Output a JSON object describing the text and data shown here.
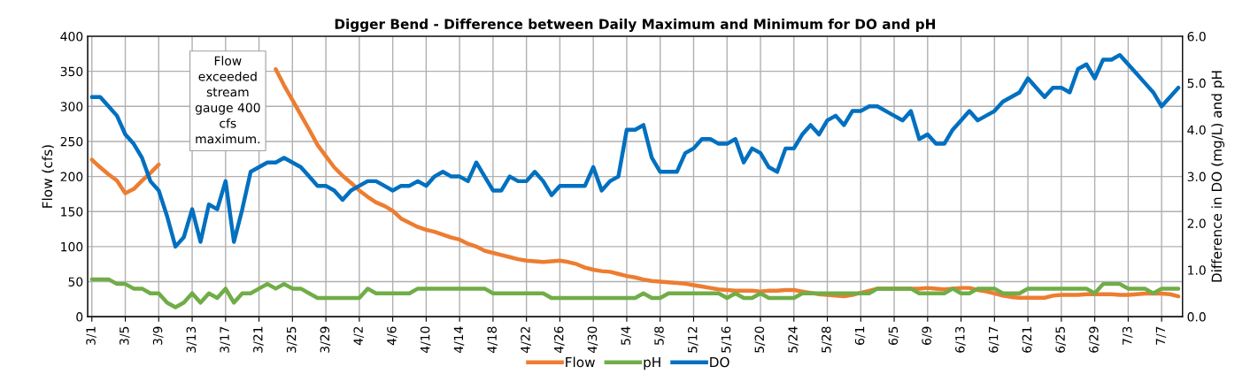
{
  "chart_data": {
    "type": "line",
    "title": "Digger Bend - Difference between Daily Maximum and Minimum for DO and pH",
    "ylabel": "Flow (cfs)",
    "y2label": "Difference in DO (mg/L) and pH",
    "categories": [
      "3/1",
      null,
      null,
      null,
      "3/5",
      null,
      null,
      null,
      "3/9",
      null,
      null,
      null,
      "3/13",
      null,
      null,
      null,
      "3/17",
      null,
      null,
      null,
      "3/21",
      null,
      null,
      null,
      "3/25",
      null,
      null,
      null,
      "3/29",
      null,
      null,
      null,
      "4/2",
      null,
      null,
      null,
      "4/6",
      null,
      null,
      null,
      "4/10",
      null,
      null,
      null,
      "4/14",
      null,
      null,
      null,
      "4/18",
      null,
      null,
      null,
      "4/22",
      null,
      null,
      null,
      "4/26",
      null,
      null,
      null,
      "4/30",
      null,
      null,
      null,
      "5/4",
      null,
      null,
      null,
      "5/8",
      null,
      null,
      null,
      "5/12",
      null,
      null,
      null,
      "5/16",
      null,
      null,
      null,
      "5/20",
      null,
      null,
      null,
      "5/24",
      null,
      null,
      null,
      "5/28",
      null,
      null,
      null,
      "6/1",
      null,
      null,
      null,
      "6/5",
      null,
      null,
      null,
      "6/9",
      null,
      null,
      null,
      "6/13",
      null,
      null,
      null,
      "6/17",
      null,
      null,
      null,
      "6/21",
      null,
      null,
      null,
      "6/25",
      null,
      null,
      null,
      "6/29",
      null,
      null,
      null,
      "7/3",
      null,
      null,
      null,
      "7/7",
      null,
      null
    ],
    "series": [
      {
        "name": "Flow",
        "color": "#ed7d31",
        "values": [
          224,
          213,
          203,
          194,
          176,
          182,
          194,
          205,
          217,
          null,
          null,
          null,
          null,
          null,
          null,
          null,
          null,
          null,
          null,
          null,
          null,
          null,
          353,
          330,
          309,
          288,
          267,
          245,
          229,
          213,
          201,
          191,
          180,
          171,
          163,
          158,
          151,
          140,
          134,
          128,
          124,
          121,
          117,
          113,
          110,
          104,
          100,
          94,
          91,
          88,
          85,
          82,
          80,
          79,
          78,
          79,
          80,
          78,
          75,
          70,
          67,
          65,
          64,
          61,
          58,
          56,
          53,
          51,
          50,
          49,
          48,
          47,
          45,
          43,
          41,
          39,
          38,
          37,
          37,
          37,
          36,
          37,
          37,
          38,
          38,
          36,
          34,
          32,
          31,
          30,
          29,
          31,
          34,
          37,
          40,
          40,
          40,
          40,
          40,
          40,
          41,
          40,
          39,
          40,
          41,
          41,
          38,
          36,
          33,
          30,
          28,
          27,
          27,
          27,
          27,
          30,
          31,
          31,
          31,
          32,
          32,
          32,
          32,
          31,
          31,
          32,
          33,
          33,
          33,
          32,
          29
        ]
      },
      {
        "name": "pH",
        "color": "#70ad47",
        "axis": "y2",
        "values": [
          0.8,
          0.8,
          0.8,
          0.7,
          0.7,
          0.6,
          0.6,
          0.5,
          0.5,
          0.3,
          0.2,
          0.3,
          0.5,
          0.3,
          0.5,
          0.4,
          0.6,
          0.3,
          0.5,
          0.5,
          0.6,
          0.7,
          0.6,
          0.7,
          0.6,
          0.6,
          0.5,
          0.4,
          0.4,
          0.4,
          0.4,
          0.4,
          0.4,
          0.6,
          0.5,
          0.5,
          0.5,
          0.5,
          0.5,
          0.6,
          0.6,
          0.6,
          0.6,
          0.6,
          0.6,
          0.6,
          0.6,
          0.6,
          0.5,
          0.5,
          0.5,
          0.5,
          0.5,
          0.5,
          0.5,
          0.4,
          0.4,
          0.4,
          0.4,
          0.4,
          0.4,
          0.4,
          0.4,
          0.4,
          0.4,
          0.4,
          0.5,
          0.4,
          0.4,
          0.5,
          0.5,
          0.5,
          0.5,
          0.5,
          0.5,
          0.5,
          0.4,
          0.5,
          0.4,
          0.4,
          0.5,
          0.4,
          0.4,
          0.4,
          0.4,
          0.5,
          0.5,
          0.5,
          0.5,
          0.5,
          0.5,
          0.5,
          0.5,
          0.5,
          0.6,
          0.6,
          0.6,
          0.6,
          0.6,
          0.5,
          0.5,
          0.5,
          0.5,
          0.6,
          0.5,
          0.5,
          0.6,
          0.6,
          0.6,
          0.5,
          0.5,
          0.5,
          0.6,
          0.6,
          0.6,
          0.6,
          0.6,
          0.6,
          0.6,
          0.6,
          0.5,
          0.7,
          0.7,
          0.7,
          0.6,
          0.6,
          0.6,
          0.5,
          0.6,
          0.6,
          0.6
        ]
      },
      {
        "name": "DO",
        "color": "#0070c0",
        "axis": "y2",
        "values": [
          4.7,
          4.7,
          4.5,
          4.3,
          3.9,
          3.7,
          3.4,
          2.9,
          2.7,
          2.15,
          1.5,
          1.7,
          2.3,
          1.6,
          2.4,
          2.3,
          2.9,
          1.6,
          2.3,
          3.1,
          3.2,
          3.3,
          3.3,
          3.4,
          3.3,
          3.2,
          3.0,
          2.8,
          2.8,
          2.7,
          2.5,
          2.7,
          2.8,
          2.9,
          2.9,
          2.8,
          2.7,
          2.8,
          2.8,
          2.9,
          2.8,
          3.0,
          3.1,
          3.0,
          3.0,
          2.9,
          3.3,
          3.0,
          2.7,
          2.7,
          3.0,
          2.9,
          2.9,
          3.1,
          2.9,
          2.6,
          2.8,
          2.8,
          2.8,
          2.8,
          3.2,
          2.7,
          2.9,
          3.0,
          4.0,
          4.0,
          4.1,
          3.4,
          3.1,
          3.1,
          3.1,
          3.5,
          3.6,
          3.8,
          3.8,
          3.7,
          3.7,
          3.8,
          3.3,
          3.6,
          3.5,
          3.2,
          3.1,
          3.6,
          3.6,
          3.9,
          4.1,
          3.9,
          4.2,
          4.3,
          4.1,
          4.4,
          4.4,
          4.5,
          4.5,
          4.4,
          4.3,
          4.2,
          4.4,
          3.8,
          3.9,
          3.7,
          3.7,
          4.0,
          4.2,
          4.4,
          4.2,
          4.3,
          4.4,
          4.6,
          4.7,
          4.8,
          5.1,
          4.9,
          4.7,
          4.9,
          4.9,
          4.8,
          5.3,
          5.4,
          5.1,
          5.5,
          5.5,
          5.6,
          5.4,
          5.2,
          5.0,
          4.8,
          4.5,
          4.7,
          4.9
        ]
      }
    ],
    "ylim": [
      0,
      400
    ],
    "yticks": [
      0,
      50,
      100,
      150,
      200,
      250,
      300,
      350,
      400
    ],
    "y2lim": [
      0,
      6
    ],
    "y2ticks": [
      {
        "value": 0,
        "label": "0.0"
      },
      {
        "value": 1,
        "label": "1.0"
      },
      {
        "value": 2,
        "label": "2.0"
      },
      {
        "value": 3,
        "label": "3.0"
      },
      {
        "value": 4,
        "label": "4.0"
      },
      {
        "value": 5,
        "label": "5.0"
      },
      {
        "value": 6,
        "label": "6.0"
      }
    ],
    "annotations": [
      "Flow exceeded stream gauge 400 cfs maximum."
    ],
    "grid": true,
    "legend": "bottom",
    "marker": "none",
    "line_style": "solid"
  }
}
